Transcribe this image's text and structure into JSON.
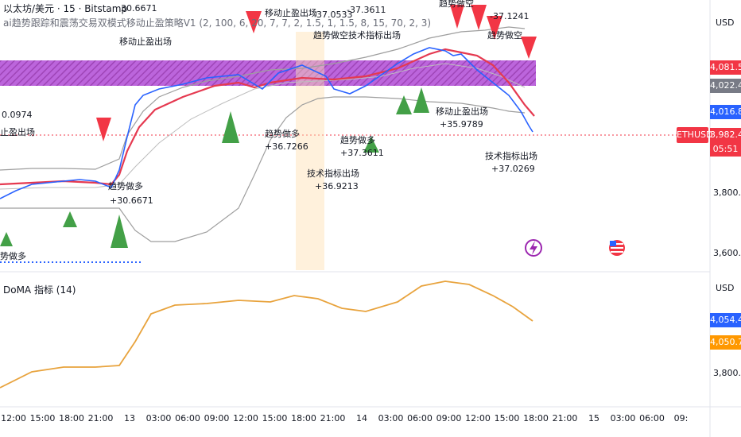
{
  "header": {
    "symbol_line": "以太坊/美元 · 15 · Bitstamp",
    "strategy_line": "ai趋势跟踪和震荡交易双模式移动止盈策略V1 (2, 100, 6, 20, 7, 7, 2, 1.5, 1, 1.5, 8, 15, 70, 2, 3)",
    "indicator_line": "DoMA 指标 (14)"
  },
  "price_axis": {
    "currency": "USD",
    "ticks": [
      "3,600.0",
      "3,800.0"
    ],
    "badges": [
      {
        "label": "4,081.5",
        "color": "#f23645"
      },
      {
        "label": "4,022.4",
        "color": "#787b86"
      },
      {
        "label": "4,016.8",
        "color": "#2962ff"
      },
      {
        "label": "3,982.4",
        "color": "#f23645"
      },
      {
        "label": "05:51",
        "color": "#f23645"
      }
    ],
    "symbol_tag": "ETHUSD"
  },
  "indicator_axis": {
    "currency": "USD",
    "ticks": [
      "3,800.0"
    ],
    "badges": [
      {
        "label": "4,054.4",
        "color": "#2962ff"
      },
      {
        "label": "4,050.7",
        "color": "#ff9800"
      }
    ]
  },
  "time_axis": {
    "labels": [
      "12:00",
      "15:00",
      "18:00",
      "21:00",
      "13",
      "03:00",
      "06:00",
      "09:00",
      "12:00",
      "15:00",
      "18:00",
      "21:00",
      "14",
      "03:00",
      "06:00",
      "09:00",
      "12:00",
      "15:00",
      "18:00",
      "21:00",
      "15",
      "03:00",
      "06:00",
      "09:"
    ]
  },
  "annotations": [
    {
      "text": "移动止盈出场"
    },
    {
      "text": "趋势做多"
    },
    {
      "text": "+36.7266"
    },
    {
      "text": "技术指标出场"
    },
    {
      "text": "+36.9213"
    },
    {
      "text": "趋势做多"
    },
    {
      "text": "+37.3611"
    },
    {
      "text": "移动止盈出场"
    },
    {
      "text": "+35.9789"
    },
    {
      "text": "技术指标出场"
    },
    {
      "text": "+37.0269"
    },
    {
      "text": "趋势做空"
    },
    {
      "text": "-37.1241"
    },
    {
      "text": "-37.0533"
    },
    {
      "text": "-37.3611"
    },
    {
      "text": "趋势做空"
    },
    {
      "text": "30.6671"
    },
    {
      "text": "移动止盈出场"
    },
    {
      "text": "趋势做多"
    },
    {
      "text": "+30.6671"
    },
    {
      "text": "0.0974"
    },
    {
      "text": "止盈出场"
    },
    {
      "text": "势做多"
    },
    {
      "text": "趋势做空技术指标出场"
    }
  ],
  "colors": {
    "red_line": "#e53950",
    "blue_line": "#2962ff",
    "band_line": "#9e9e9e",
    "doma_line": "#e8a33d",
    "purple_zone": "#9c27b0",
    "buy_triangle": "#43a047",
    "sell_triangle": "#f23645"
  },
  "icons": [
    "lightning-icon",
    "us-flag-icon"
  ]
}
